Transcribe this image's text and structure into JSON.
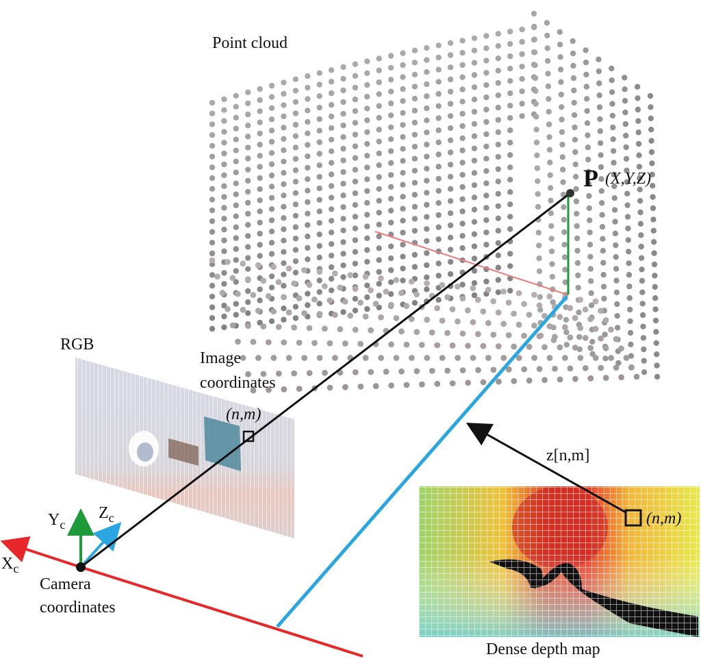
{
  "labels": {
    "point_cloud": "Point cloud",
    "p_bold": "P",
    "p_coords": "(X,Y,Z)",
    "rgb": "RGB",
    "image_coordinates_line1": "Image",
    "image_coordinates_line2": "coordinates",
    "image_point": "(n,m)",
    "depth_point": "(n,m)",
    "depth_value": "z[n,m]",
    "dense_depth_map": "Dense depth map",
    "camera_coordinates_line1": "Camera",
    "camera_coordinates_line2": "coordinates",
    "axis_y": "Y",
    "axis_z": "Z",
    "axis_x": "X",
    "axis_subscript": "c"
  },
  "colors": {
    "x_axis": "#e8272a",
    "y_axis": "#1f9a3a",
    "z_axis": "#2aa6e0",
    "depth_near": "#d62020",
    "depth_far": "#7fd0c8",
    "point_gray": "#8a8a8a"
  }
}
